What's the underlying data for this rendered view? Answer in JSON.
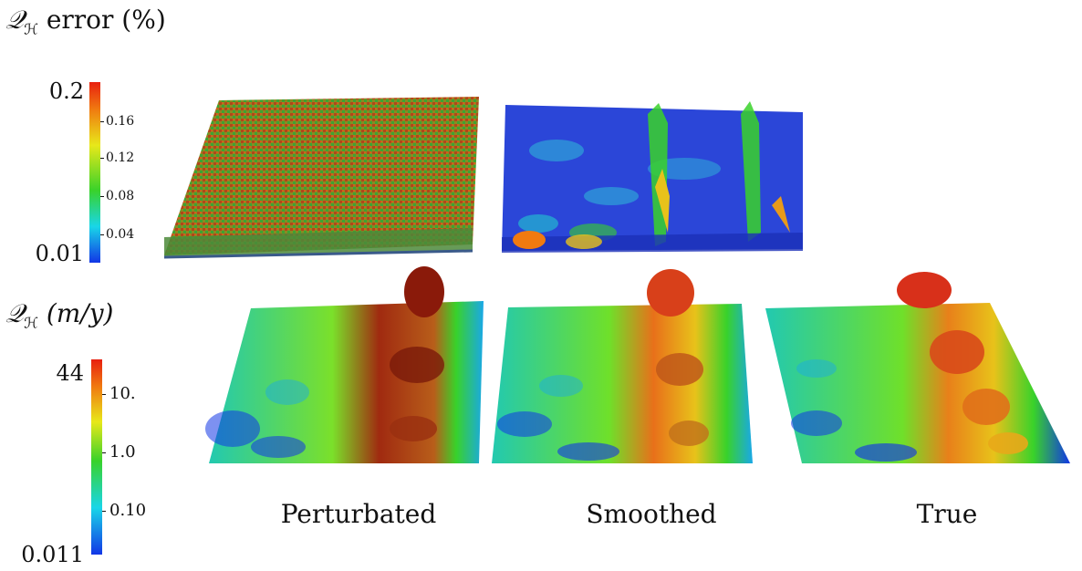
{
  "error_colorbar": {
    "title": "Q_H error (%)",
    "title_math": "𝒬",
    "title_sub": "ℋ",
    "title_rest": " error (%)",
    "max_label": "0.2",
    "min_label": "0.01",
    "ticks": [
      "0.16",
      "0.12",
      "0.08",
      "0.04"
    ]
  },
  "flux_colorbar": {
    "title_math": "𝒬",
    "title_sub": "ℋ",
    "title_rest": " (m/y)",
    "max_label": "44",
    "min_label": "0.011",
    "ticks": [
      "10.",
      "1.0",
      "0.10"
    ]
  },
  "columns": [
    {
      "label": "Perturbated"
    },
    {
      "label": "Smoothed"
    },
    {
      "label": "True"
    }
  ],
  "colors": {
    "red": "#e8200f",
    "orange": "#f07a10",
    "yellow": "#e8e81a",
    "green": "#39d22a",
    "cyan": "#19d6e8",
    "blue": "#1236e6",
    "darkblue": "#1020c0"
  }
}
